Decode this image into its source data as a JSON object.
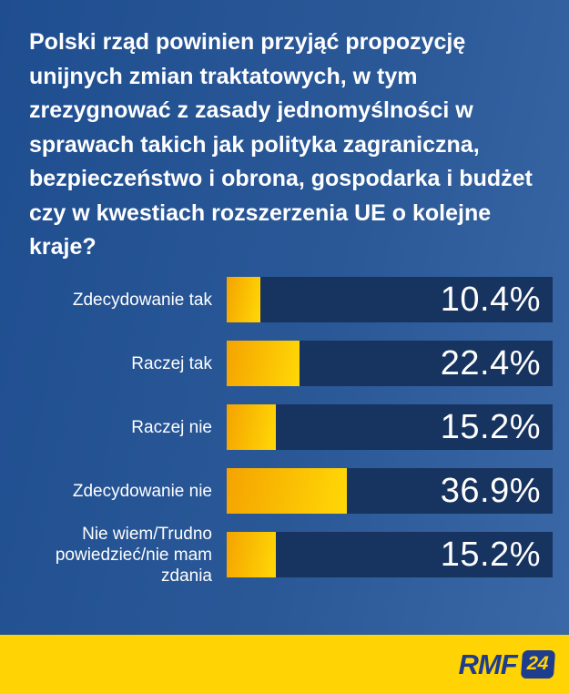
{
  "question": {
    "full_text": "Polski rząd powinien przyjąć propozycję unijnych zmian traktatowych, w tym zrezygnować z zasady jednomyślności w sprawach takich jak polityka zagraniczna, bezpieczeństwo i obrona, gospodarka i budżet czy w kwestiach rozszerzenia UE o kolejne kraje?",
    "lines": [
      "Polski rząd powinien przyjąć propozycję",
      "unijnych zmian traktatowych, w tym",
      "zrezygnować z zasady jednomyślności w",
      "sprawach takich jak polityka zagraniczna,",
      "bezpieczeństwo i obrona, gospodarka i budżet",
      "czy w kwestiach rozszerzenia UE o kolejne",
      "kraje?"
    ]
  },
  "chart_data": {
    "type": "bar",
    "orientation": "horizontal",
    "xlim": [
      0,
      100
    ],
    "unit": "%",
    "grid": false,
    "legend": false,
    "categories": [
      "Zdecydowanie tak",
      "Raczej tak",
      "Raczej nie",
      "Zdecydowanie nie",
      "Nie wiem/Trudno powiedzieć/nie mam zdania"
    ],
    "values": [
      10.4,
      22.4,
      15.2,
      36.9,
      15.2
    ],
    "rows": [
      {
        "label": "Zdecydowanie tak",
        "value": 10.4,
        "value_label": "10.4%"
      },
      {
        "label": "Raczej tak",
        "value": 22.4,
        "value_label": "22.4%"
      },
      {
        "label": "Raczej nie",
        "value": 15.2,
        "value_label": "15.2%"
      },
      {
        "label": "Zdecydowanie nie",
        "value": 36.9,
        "value_label": "36.9%"
      },
      {
        "label": "Nie wiem/Trudno powiedzieć/nie mam zdania",
        "value": 15.2,
        "value_label": "15.2%"
      }
    ],
    "colors": {
      "bar_track": "#17335F",
      "bar_fill_start": "#F5A300",
      "bar_fill_end": "#FFD806",
      "label_text": "#FFFFFF",
      "value_text": "#FFFFFF"
    }
  },
  "background": {
    "gradient_start": "#1F4E90",
    "gradient_end": "#3B68A7"
  },
  "footer": {
    "band_color": "#FFD304",
    "logo_color": "#1E3D8F",
    "logo_rmf": "RMF",
    "logo_24": "24"
  }
}
